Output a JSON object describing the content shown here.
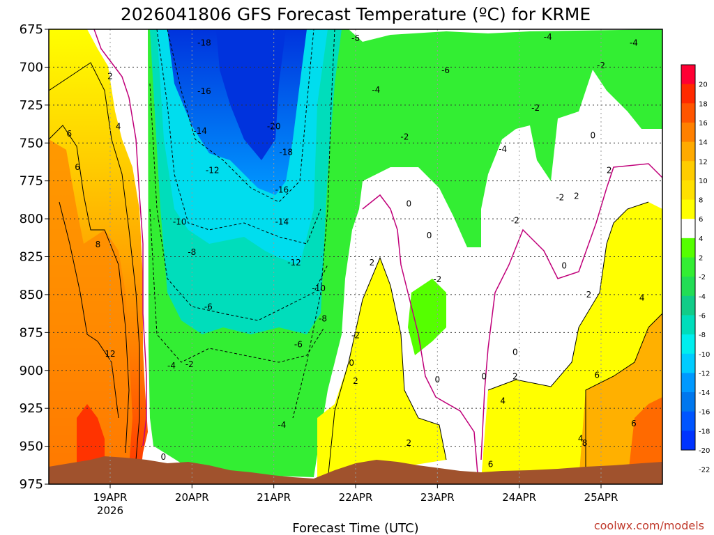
{
  "chart_data": {
    "type": "heatmap",
    "title": "2026041806 GFS Forecast Temperature (ºC) for KRME",
    "xlabel": "Forecast Time (UTC)",
    "ylabel": "",
    "credit": "coolwx.com/models",
    "yaxis": {
      "ticks": [
        "675",
        "700",
        "725",
        "750",
        "775",
        "800",
        "825",
        "850",
        "875",
        "900",
        "925",
        "950",
        "975"
      ],
      "range": [
        675,
        975
      ]
    },
    "xaxis": {
      "range_days": [
        18.25,
        25.75
      ],
      "ticks": [
        {
          "day": 19,
          "label": "19APR",
          "sublabel": "2026"
        },
        {
          "day": 20,
          "label": "20APR",
          "sublabel": ""
        },
        {
          "day": 21,
          "label": "21APR",
          "sublabel": ""
        },
        {
          "day": 22,
          "label": "22APR",
          "sublabel": ""
        },
        {
          "day": 23,
          "label": "23APR",
          "sublabel": ""
        },
        {
          "day": 24,
          "label": "24APR",
          "sublabel": ""
        },
        {
          "day": 25,
          "label": "25APR",
          "sublabel": ""
        }
      ]
    },
    "colorbar": {
      "labels": [
        "20",
        "18",
        "16",
        "14",
        "12",
        "10",
        "8",
        "6",
        "4",
        "2",
        "-2",
        "-4",
        "-6",
        "-8",
        "-10",
        "-12",
        "-14",
        "-16",
        "-18",
        "-20",
        "-22"
      ],
      "colors": [
        "#ff0033",
        "#ff2a00",
        "#ff5500",
        "#ff8000",
        "#ffaa00",
        "#ffcc00",
        "#ffe000",
        "#ffff00",
        "#ffffff",
        "#55ff00",
        "#33ee33",
        "#22dd55",
        "#11cc88",
        "#00ddbb",
        "#00eeee",
        "#00ccff",
        "#0099ff",
        "#0077ee",
        "#0055ff",
        "#0033ff"
      ]
    },
    "field_colors": {
      "ground": "#a0522d",
      "zero_contour": "#c0007a",
      "grid": "#999999"
    },
    "contour_labels": [
      {
        "text": "2",
        "day": 19.0,
        "p": 706
      },
      {
        "text": "4",
        "day": 19.1,
        "p": 739
      },
      {
        "text": "6",
        "day": 18.5,
        "p": 744
      },
      {
        "text": "6",
        "day": 18.6,
        "p": 766
      },
      {
        "text": "8",
        "day": 18.85,
        "p": 817
      },
      {
        "text": "12",
        "day": 19.0,
        "p": 889
      },
      {
        "text": "-18",
        "day": 20.15,
        "p": 684
      },
      {
        "text": "-16",
        "day": 20.15,
        "p": 716
      },
      {
        "text": "-14",
        "day": 20.1,
        "p": 742
      },
      {
        "text": "-12",
        "day": 20.25,
        "p": 768
      },
      {
        "text": "-10",
        "day": 19.85,
        "p": 802
      },
      {
        "text": "-8",
        "day": 20.0,
        "p": 822
      },
      {
        "text": "-6",
        "day": 20.2,
        "p": 858
      },
      {
        "text": "-4",
        "day": 19.75,
        "p": 897
      },
      {
        "text": "-2",
        "day": 19.97,
        "p": 896
      },
      {
        "text": "0",
        "day": 19.65,
        "p": 957
      },
      {
        "text": "-20",
        "day": 21.0,
        "p": 739
      },
      {
        "text": "-18",
        "day": 21.15,
        "p": 756
      },
      {
        "text": "-16",
        "day": 21.1,
        "p": 781
      },
      {
        "text": "-14",
        "day": 21.1,
        "p": 802
      },
      {
        "text": "-12",
        "day": 21.25,
        "p": 829
      },
      {
        "text": "-10",
        "day": 21.55,
        "p": 846
      },
      {
        "text": "-8",
        "day": 21.6,
        "p": 866
      },
      {
        "text": "-6",
        "day": 21.3,
        "p": 883
      },
      {
        "text": "-4",
        "day": 21.1,
        "p": 936
      },
      {
        "text": "-6",
        "day": 22.0,
        "p": 681
      },
      {
        "text": "-4",
        "day": 22.25,
        "p": 715
      },
      {
        "text": "-6",
        "day": 23.1,
        "p": 702
      },
      {
        "text": "-2",
        "day": 22.6,
        "p": 746
      },
      {
        "text": "0",
        "day": 22.65,
        "p": 790
      },
      {
        "text": "0",
        "day": 22.9,
        "p": 811
      },
      {
        "text": "2",
        "day": 22.2,
        "p": 829
      },
      {
        "text": "-2",
        "day": 23.0,
        "p": 840
      },
      {
        "text": "-2",
        "day": 22.0,
        "p": 877
      },
      {
        "text": "0",
        "day": 21.95,
        "p": 895
      },
      {
        "text": "2",
        "day": 22.0,
        "p": 907
      },
      {
        "text": "0",
        "day": 23.0,
        "p": 906
      },
      {
        "text": "2",
        "day": 22.65,
        "p": 948
      },
      {
        "text": "-4",
        "day": 24.35,
        "p": 680
      },
      {
        "text": "-4",
        "day": 25.4,
        "p": 684
      },
      {
        "text": "-2",
        "day": 25.0,
        "p": 699
      },
      {
        "text": "-2",
        "day": 24.2,
        "p": 727
      },
      {
        "text": "-4",
        "day": 23.8,
        "p": 754
      },
      {
        "text": "0",
        "day": 24.9,
        "p": 745
      },
      {
        "text": "-2",
        "day": 23.95,
        "p": 801
      },
      {
        "text": "-2",
        "day": 24.5,
        "p": 786
      },
      {
        "text": "0",
        "day": 24.55,
        "p": 831
      },
      {
        "text": "0",
        "day": 23.95,
        "p": 888
      },
      {
        "text": "0",
        "day": 23.57,
        "p": 904
      },
      {
        "text": "2",
        "day": 23.95,
        "p": 904
      },
      {
        "text": "4",
        "day": 23.8,
        "p": 920
      },
      {
        "text": "2",
        "day": 24.7,
        "p": 785
      },
      {
        "text": "2",
        "day": 25.1,
        "p": 768
      },
      {
        "text": "2",
        "day": 24.85,
        "p": 850
      },
      {
        "text": "4",
        "day": 25.5,
        "p": 852
      },
      {
        "text": "6",
        "day": 24.95,
        "p": 903
      },
      {
        "text": "6",
        "day": 25.4,
        "p": 935
      },
      {
        "text": "4",
        "day": 24.75,
        "p": 945
      },
      {
        "text": "8",
        "day": 24.8,
        "p": 948
      },
      {
        "text": "6",
        "day": 23.65,
        "p": 962
      }
    ]
  }
}
